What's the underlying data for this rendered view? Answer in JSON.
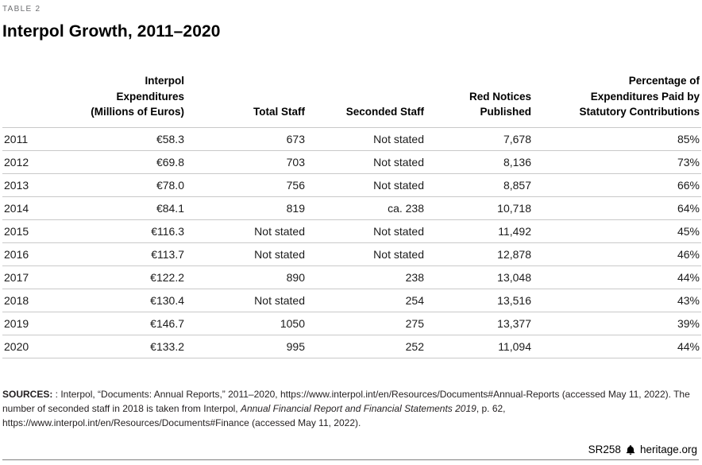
{
  "page": {
    "table_label": "TABLE 2",
    "title": "Interpol Growth, 2011–2020"
  },
  "chart_data": {
    "type": "table",
    "title": "Interpol Growth, 2011–2020",
    "columns": [
      "",
      "Interpol\nExpenditures\n(Millions of Euros)",
      "Total Staff",
      "Seconded Staff",
      "Red Notices\nPublished",
      "Percentage of\nExpenditures Paid by\nStatutory Contributions"
    ],
    "rows": [
      [
        "2011",
        "€58.3",
        "673",
        "Not stated",
        "7,678",
        "85%"
      ],
      [
        "2012",
        "€69.8",
        "703",
        "Not stated",
        "8,136",
        "73%"
      ],
      [
        "2013",
        "€78.0",
        "756",
        "Not stated",
        "8,857",
        "66%"
      ],
      [
        "2014",
        "€84.1",
        "819",
        "ca. 238",
        "10,718",
        "64%"
      ],
      [
        "2015",
        "€116.3",
        "Not stated",
        "Not stated",
        "11,492",
        "45%"
      ],
      [
        "2016",
        "€113.7",
        "Not stated",
        "Not stated",
        "12,878",
        "46%"
      ],
      [
        "2017",
        "€122.2",
        "890",
        "238",
        "13,048",
        "44%"
      ],
      [
        "2018",
        "€130.4",
        "Not stated",
        "254",
        "13,516",
        "43%"
      ],
      [
        "2019",
        "€146.7",
        "1050",
        "275",
        "13,377",
        "39%"
      ],
      [
        "2020",
        "€133.2",
        "995",
        "252",
        "11,094",
        "44%"
      ]
    ]
  },
  "sources": {
    "label": "SOURCES:",
    "text_1": " : Interpol, “Documents: Annual Reports,” 2011–2020, https://www.interpol.int/en/Resources/Documents#Annual-Reports (accessed May 11, 2022). The number of seconded staff in 2018 is taken from Interpol, ",
    "italic": "Annual Financial Report and Financial Statements 2019",
    "text_2": ", p. 62, https://www.interpol.int/en/Resources/Documents#Finance (accessed May 11, 2022)."
  },
  "footer": {
    "report_id": "SR258",
    "site": "heritage.org"
  }
}
